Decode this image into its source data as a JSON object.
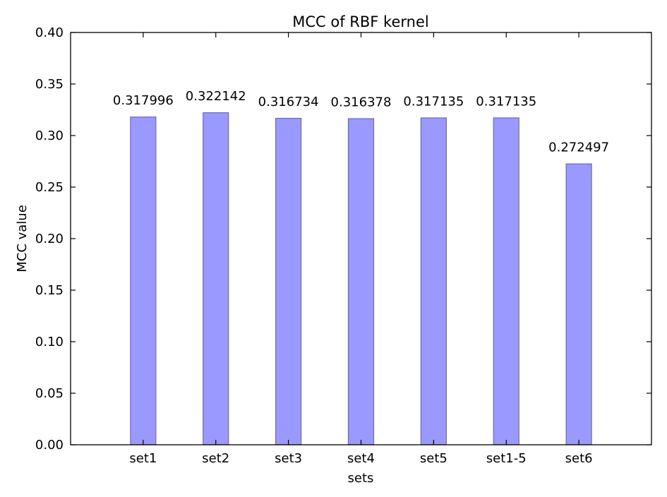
{
  "chart_data": {
    "type": "bar",
    "title": "MCC of RBF kernel",
    "xlabel": "sets",
    "ylabel": "MCC value",
    "categories": [
      "set1",
      "set2",
      "set3",
      "set4",
      "set5",
      "set1-5",
      "set6"
    ],
    "values": [
      0.317996,
      0.322142,
      0.316734,
      0.316378,
      0.317135,
      0.317135,
      0.272497
    ],
    "data_labels": [
      "0.317996",
      "0.322142",
      "0.316734",
      "0.316378",
      "0.317135",
      "0.317135",
      "0.272497"
    ],
    "ylim": [
      0,
      0.4
    ],
    "yticks": [
      "0.00",
      "0.05",
      "0.10",
      "0.15",
      "0.20",
      "0.25",
      "0.30",
      "0.35",
      "0.40"
    ],
    "xlim": [
      -1,
      7
    ],
    "grid": false,
    "legend": "none",
    "bar_color": "#9999ff",
    "bar_edge_color": "#6e6e9e"
  }
}
